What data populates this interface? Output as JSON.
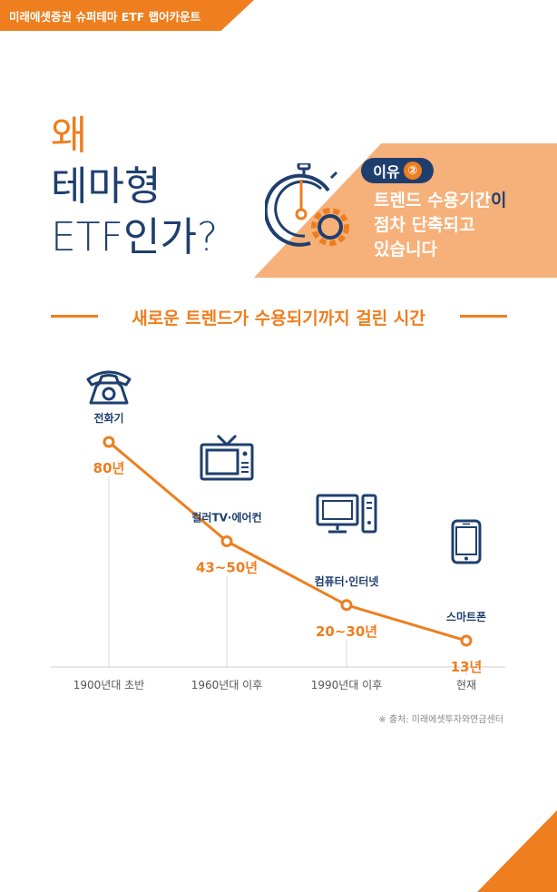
{
  "header": {
    "tag": "미래에셋증권 슈퍼테마 ETF 랩어카운트"
  },
  "headline": {
    "line1": "왜",
    "line2": "테마형",
    "line3": "ETF인가?"
  },
  "reason": {
    "badge_label": "이유",
    "badge_number": "②",
    "line1_main": "트렌드 수용기간",
    "line1_tail": "이",
    "line2": "점차 단축되고",
    "line3": "있습니다"
  },
  "colors": {
    "orange": "#ee7e1e",
    "navy": "#1e3f6e",
    "banner": "#f6b079"
  },
  "chart_data": {
    "type": "line",
    "title": "새로운 트렌드가 수용되기까지 걸린 시간",
    "categories": [
      "1900년대 초반",
      "1960년대 이후",
      "1990년대 이후",
      "현재"
    ],
    "series": [
      {
        "labels": [
          "전화기",
          "컬러TV·에어컨",
          "컴퓨터·인터넷",
          "스마트폰"
        ],
        "values": [
          80,
          46.5,
          25,
          13
        ],
        "value_labels": [
          "80년",
          "43~50년",
          "20~30년",
          "13년"
        ],
        "icons": [
          "telephone-icon",
          "television-icon",
          "computer-icon",
          "smartphone-icon"
        ]
      }
    ]
  },
  "source": "※ 출처: 미래에셋투자와연금센터"
}
